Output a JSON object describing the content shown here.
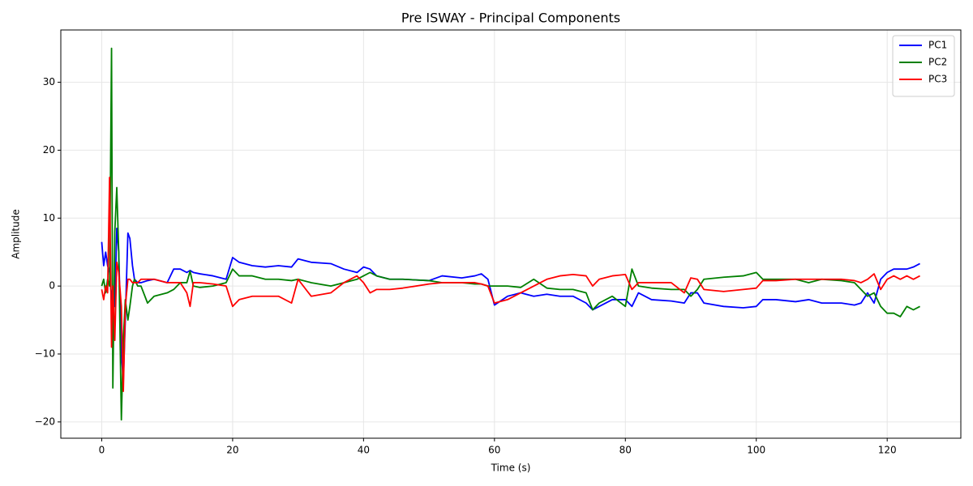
{
  "chart_data": {
    "type": "line",
    "title": "Pre ISWAY - Principal Components",
    "xlabel": "Time (s)",
    "ylabel": "Amplitude",
    "x": [
      0,
      0.3,
      0.6,
      0.9,
      1.2,
      1.5,
      1.7,
      2.0,
      2.3,
      2.6,
      3.0,
      3.3,
      3.6,
      4.0,
      4.3,
      4.7,
      5.0,
      5.5,
      6,
      7,
      8,
      10,
      11,
      12,
      13,
      13.5,
      14,
      15,
      17,
      19,
      20,
      21,
      23,
      25,
      27,
      29,
      30,
      32,
      35,
      37,
      39,
      40,
      41,
      42,
      44,
      46,
      50,
      52,
      55,
      57,
      58,
      59,
      60,
      62,
      64,
      66,
      68,
      70,
      72,
      74,
      75,
      76,
      78,
      80,
      81,
      82,
      84,
      87,
      89,
      90,
      91,
      92,
      95,
      98,
      100,
      101,
      103,
      106,
      108,
      110,
      113,
      115,
      116,
      117,
      118,
      119,
      120,
      121,
      122,
      123,
      124,
      125
    ],
    "series": [
      {
        "name": "PC1",
        "color": "#0000ff",
        "values": [
          6.5,
          3,
          5,
          3,
          2,
          -2,
          0,
          -3,
          8.5,
          5,
          -10,
          -14,
          -5,
          7.8,
          7,
          3,
          1,
          0.5,
          0.5,
          0.8,
          1,
          0.5,
          2.5,
          2.5,
          2,
          2.3,
          2,
          1.8,
          1.5,
          1,
          4.2,
          3.5,
          3,
          2.8,
          3,
          2.8,
          4,
          3.5,
          3.3,
          2.5,
          2,
          2.8,
          2.5,
          1.5,
          1,
          1,
          0.8,
          1.5,
          1.2,
          1.5,
          1.8,
          1,
          -2.8,
          -1.5,
          -1,
          -1.5,
          -1.2,
          -1.5,
          -1.5,
          -2.5,
          -3.5,
          -3,
          -2,
          -2,
          -3,
          -1,
          -2,
          -2.2,
          -2.5,
          -1,
          -1,
          -2.5,
          -3,
          -3.2,
          -3,
          -2,
          -2,
          -2.3,
          -2,
          -2.5,
          -2.5,
          -2.8,
          -2.5,
          -1,
          -2.5,
          1,
          2,
          2.5,
          2.5,
          2.5,
          2.8,
          3.3
        ]
      },
      {
        "name": "PC2",
        "color": "#008000",
        "values": [
          0,
          1,
          -1,
          1,
          0,
          35,
          -15,
          8,
          14.5,
          5,
          -19.7,
          -8,
          -2,
          -5,
          -3,
          0,
          1,
          0,
          0,
          -2.5,
          -1.5,
          -1,
          -0.5,
          0.5,
          0.5,
          2.2,
          0,
          -0.2,
          0,
          0.5,
          2.5,
          1.5,
          1.5,
          1,
          1,
          0.8,
          1,
          0.5,
          0,
          0.5,
          1,
          1.5,
          2,
          1.5,
          1,
          1,
          0.8,
          0.5,
          0.5,
          0.3,
          0.3,
          0,
          0,
          0,
          -0.2,
          1,
          -0.3,
          -0.5,
          -0.5,
          -1,
          -3.5,
          -2.5,
          -1.5,
          -3,
          2.5,
          0,
          -0.3,
          -0.5,
          -0.5,
          -1.5,
          -0.5,
          1,
          1.3,
          1.5,
          2,
          1,
          1,
          1,
          0.5,
          1,
          0.8,
          0.5,
          -0.5,
          -1.5,
          -1,
          -3,
          -4,
          -4,
          -4.5,
          -3,
          -3.5,
          -3
        ]
      },
      {
        "name": "PC3",
        "color": "#ff0000",
        "values": [
          -0.5,
          -2,
          0,
          -1,
          16,
          -9,
          0,
          -8,
          3.5,
          2,
          -3,
          -15.5,
          -3,
          1,
          1,
          0.5,
          0.5,
          0.5,
          1,
          1,
          1,
          0.5,
          0.5,
          0.5,
          -1,
          -3,
          0.5,
          0.5,
          0.3,
          0,
          -3,
          -2,
          -1.5,
          -1.5,
          -1.5,
          -2.5,
          1,
          -1.5,
          -1,
          0.5,
          1.5,
          0.5,
          -1,
          -0.5,
          -0.5,
          -0.3,
          0.3,
          0.5,
          0.5,
          0.5,
          0.3,
          0,
          -2.5,
          -2,
          -1,
          0,
          1,
          1.5,
          1.7,
          1.5,
          0,
          1,
          1.5,
          1.7,
          -0.5,
          0.5,
          0.5,
          0.5,
          -1,
          1.2,
          1,
          -0.5,
          -0.8,
          -0.5,
          -0.3,
          0.8,
          0.8,
          1,
          1,
          1,
          1,
          0.8,
          0.5,
          1,
          1.8,
          -0.5,
          1,
          1.5,
          1,
          1.5,
          1,
          1.5
        ]
      }
    ],
    "xlim": [
      -6.25,
      131.25
    ],
    "xticks": [
      0,
      20,
      40,
      60,
      80,
      100,
      120
    ],
    "ylim": [
      -22.4,
      37.7
    ],
    "yticks": [
      {
        "value": -20,
        "label": "−20"
      },
      {
        "value": -10,
        "label": "−10"
      },
      0,
      10,
      20,
      30
    ],
    "grid": true,
    "legend": "upper right"
  }
}
